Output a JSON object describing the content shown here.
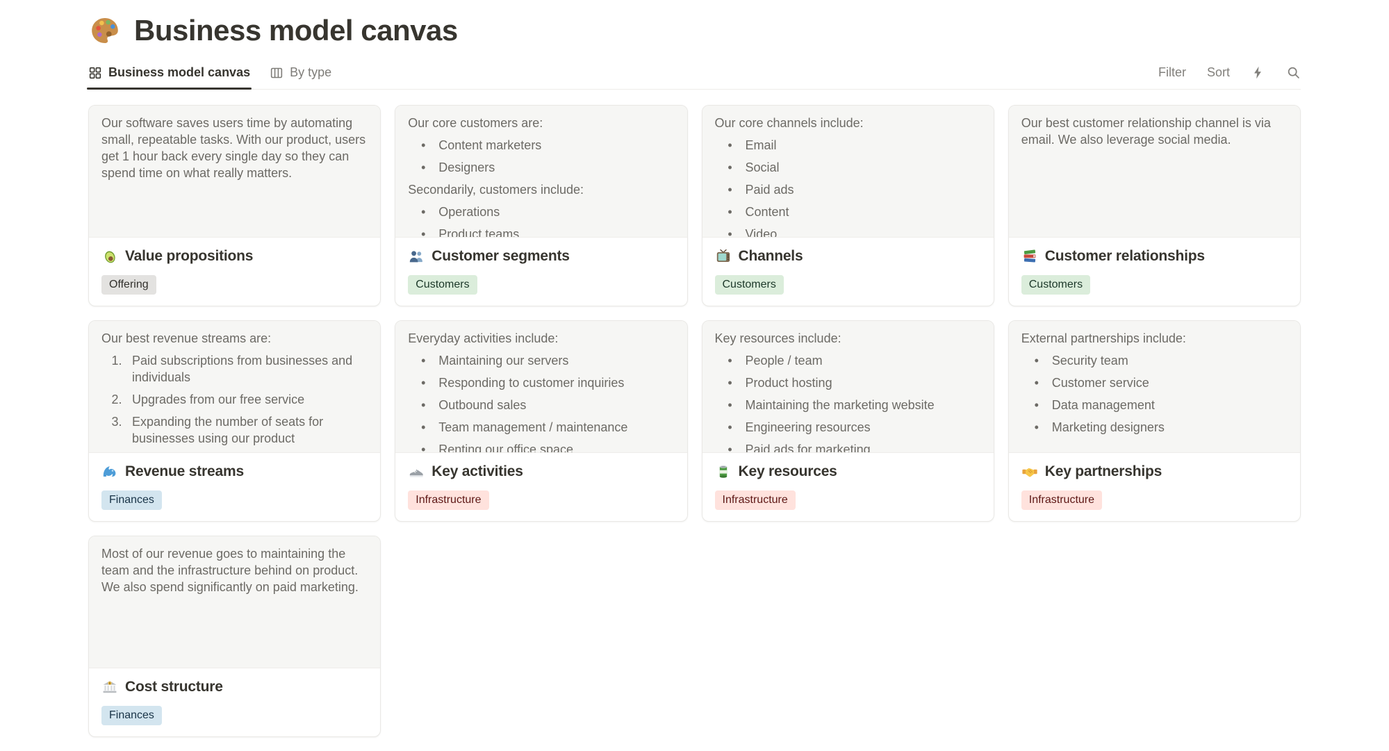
{
  "page": {
    "title": "Business model canvas",
    "icon": "palette-icon"
  },
  "toolbar": {
    "tabs": [
      {
        "label": "Business model canvas",
        "icon": "gallery-view-icon",
        "active": true
      },
      {
        "label": "By type",
        "icon": "board-view-icon",
        "active": false
      }
    ],
    "filter_label": "Filter",
    "sort_label": "Sort",
    "action_icons": [
      "lightning-icon",
      "search-icon"
    ]
  },
  "tag_colors": {
    "Offering": {
      "bg": "#E3E2E0",
      "text": "#32302C"
    },
    "Customers": {
      "bg": "#DBEDDB",
      "text": "#1C3829"
    },
    "Finances": {
      "bg": "#D3E5EF",
      "text": "#183347"
    },
    "Infrastructure": {
      "bg": "#FFE2DD",
      "text": "#5D1715"
    }
  },
  "cards": [
    {
      "title": "Value propositions",
      "icon": "avocado-icon",
      "tag": "Offering",
      "preview": [
        {
          "type": "p",
          "text": "Our software saves users time by automating small, repeatable tasks. With our product, users get 1 hour back every single day so they can spend time on what really matters."
        }
      ]
    },
    {
      "title": "Customer segments",
      "icon": "busts-in-silhouette-icon",
      "tag": "Customers",
      "preview": [
        {
          "type": "p",
          "text": "Our core customers are:"
        },
        {
          "type": "bullet",
          "text": "Content marketers"
        },
        {
          "type": "bullet",
          "text": "Designers"
        },
        {
          "type": "p",
          "text": "Secondarily, customers include:"
        },
        {
          "type": "bullet",
          "text": "Operations"
        },
        {
          "type": "bullet",
          "text": "Product teams"
        }
      ]
    },
    {
      "title": "Channels",
      "icon": "tv-icon",
      "tag": "Customers",
      "preview": [
        {
          "type": "p",
          "text": "Our core channels include:"
        },
        {
          "type": "bullet",
          "text": "Email"
        },
        {
          "type": "bullet",
          "text": "Social"
        },
        {
          "type": "bullet",
          "text": "Paid ads"
        },
        {
          "type": "bullet",
          "text": "Content"
        },
        {
          "type": "bullet",
          "text": "Video"
        }
      ]
    },
    {
      "title": "Customer relationships",
      "icon": "books-icon",
      "tag": "Customers",
      "preview": [
        {
          "type": "p",
          "text": "Our best customer relationship channel is via email. We also leverage social media."
        }
      ]
    },
    {
      "title": "Revenue streams",
      "icon": "water-wave-icon",
      "tag": "Finances",
      "preview": [
        {
          "type": "p",
          "text": "Our best revenue streams are:"
        },
        {
          "type": "num",
          "num": "1.",
          "text": "Paid subscriptions from businesses and individuals"
        },
        {
          "type": "num",
          "num": "2.",
          "text": "Upgrades from our free service"
        },
        {
          "type": "num",
          "num": "3.",
          "text": "Expanding the number of seats for businesses using our product"
        }
      ]
    },
    {
      "title": "Key activities",
      "icon": "running-shoe-icon",
      "tag": "Infrastructure",
      "preview": [
        {
          "type": "p",
          "text": "Everyday activities include:"
        },
        {
          "type": "bullet",
          "text": "Maintaining our servers"
        },
        {
          "type": "bullet",
          "text": "Responding to customer inquiries"
        },
        {
          "type": "bullet",
          "text": "Outbound sales"
        },
        {
          "type": "bullet",
          "text": "Team management / maintenance"
        },
        {
          "type": "bullet",
          "text": "Renting our office space"
        }
      ]
    },
    {
      "title": "Key resources",
      "icon": "canned-food-icon",
      "tag": "Infrastructure",
      "preview": [
        {
          "type": "p",
          "text": "Key resources include:"
        },
        {
          "type": "bullet",
          "text": "People / team"
        },
        {
          "type": "bullet",
          "text": "Product hosting"
        },
        {
          "type": "bullet",
          "text": "Maintaining the marketing website"
        },
        {
          "type": "bullet",
          "text": "Engineering resources"
        },
        {
          "type": "bullet",
          "text": "Paid ads for marketing"
        }
      ]
    },
    {
      "title": "Key partnerships",
      "icon": "handshake-icon",
      "tag": "Infrastructure",
      "preview": [
        {
          "type": "p",
          "text": "External partnerships include:"
        },
        {
          "type": "bullet",
          "text": "Security team"
        },
        {
          "type": "bullet",
          "text": "Customer service"
        },
        {
          "type": "bullet",
          "text": "Data management"
        },
        {
          "type": "bullet",
          "text": "Marketing designers"
        }
      ]
    },
    {
      "title": "Cost structure",
      "icon": "bank-icon",
      "tag": "Finances",
      "preview": [
        {
          "type": "p",
          "text": "Most of our revenue goes to maintaining the team and the infrastructure behind on product. We also spend significantly on paid marketing."
        }
      ]
    }
  ]
}
